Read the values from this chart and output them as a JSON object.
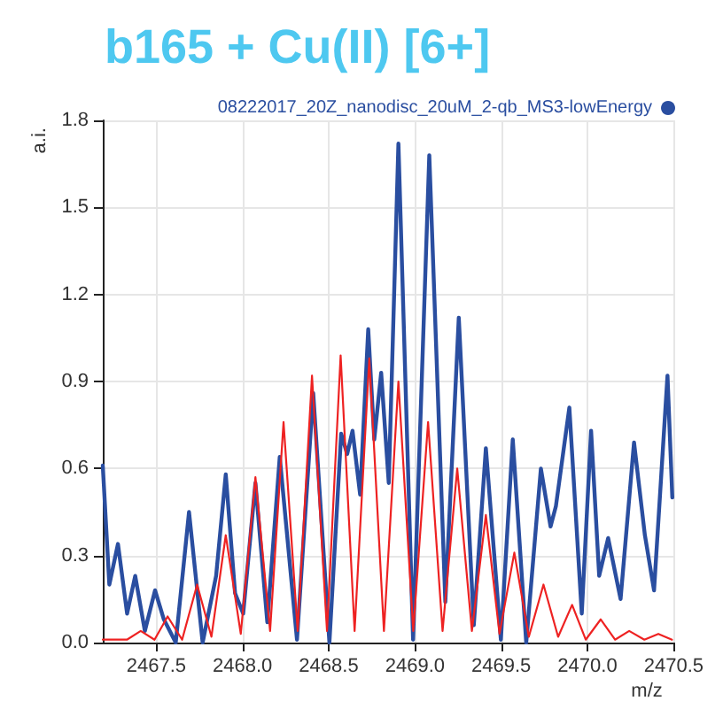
{
  "chart_data": {
    "type": "line",
    "title": "b165 + Cu(II) [6+]",
    "xlabel": "m/z",
    "ylabel": "a.i.",
    "xlim": [
      2467.19,
      2470.5
    ],
    "xticks": [
      2467.5,
      {
        "value": 2468,
        "label": "2468.0"
      },
      2468.5,
      {
        "value": 2469,
        "label": "2469.0"
      },
      2469.5,
      {
        "value": 2470,
        "label": "2470.0"
      },
      2470.5
    ],
    "ylim": [
      0,
      1.8
    ],
    "yticks": [
      {
        "value": 0,
        "label": "0.0"
      },
      {
        "value": 0.3,
        "label": "0.3"
      },
      {
        "value": 0.6,
        "label": "0.6"
      },
      {
        "value": 0.9,
        "label": "0.9"
      },
      {
        "value": 1.2,
        "label": "1.2"
      },
      {
        "value": 1.5,
        "label": "1.5"
      },
      {
        "value": 1.8,
        "label": "1.8"
      }
    ],
    "grid": true,
    "legend": "top right",
    "marker": "none",
    "line_style": "solid",
    "series": [
      {
        "name": "08222017_20Z_nanodisc_20uM_2-qb_MS3-lowEnergy",
        "color": "#2a4ea0",
        "x": [
          2467.19,
          2467.228,
          2467.278,
          2467.331,
          2467.378,
          2467.434,
          2467.493,
          2467.544,
          2467.613,
          2467.69,
          2467.769,
          2467.847,
          2467.903,
          2467.957,
          2468.004,
          2468.075,
          2468.144,
          2468.216,
          2468.316,
          2468.41,
          2468.504,
          2468.572,
          2468.607,
          2468.638,
          2468.682,
          2468.729,
          2468.764,
          2468.804,
          2468.848,
          2468.904,
          2468.989,
          2469.083,
          2469.176,
          2469.254,
          2469.341,
          2469.411,
          2469.498,
          2469.567,
          2469.645,
          2469.73,
          2469.786,
          2469.817,
          2469.895,
          2469.967,
          2470.021,
          2470.068,
          2470.12,
          2470.192,
          2470.27,
          2470.333,
          2470.386,
          2470.464,
          2470.492
        ],
        "values": [
          0.61,
          0.2,
          0.34,
          0.1,
          0.23,
          0.04,
          0.18,
          0.08,
          0,
          0.45,
          0,
          0.23,
          0.58,
          0.17,
          0.1,
          0.55,
          0.07,
          0.64,
          0.01,
          0.86,
          0,
          0.72,
          0.65,
          0.73,
          0.51,
          1.08,
          0.7,
          0.93,
          0.55,
          1.72,
          0.01,
          1.68,
          0.14,
          1.12,
          0.06,
          0.67,
          0.01,
          0.7,
          0,
          0.6,
          0.4,
          0.47,
          0.81,
          0.1,
          0.73,
          0.23,
          0.36,
          0.15,
          0.69,
          0.37,
          0.18,
          0.92,
          0.5
        ]
      },
      {
        "color": "#ee2222",
        "x": [
          2467.19,
          2467.33,
          2467.41,
          2467.49,
          2467.566,
          2467.65,
          2467.737,
          2467.82,
          2467.903,
          2467.99,
          2468.075,
          2468.16,
          2468.238,
          2468.32,
          2468.403,
          2468.49,
          2468.569,
          2468.65,
          2468.735,
          2468.82,
          2468.904,
          2468.99,
          2469.076,
          2469.16,
          2469.245,
          2469.33,
          2469.411,
          2469.49,
          2469.576,
          2469.66,
          2469.745,
          2469.83,
          2469.911,
          2469.99,
          2470.077,
          2470.16,
          2470.242,
          2470.33,
          2470.411,
          2470.49
        ],
        "values": [
          0.01,
          0.01,
          0.04,
          0.01,
          0.09,
          0.01,
          0.2,
          0.02,
          0.37,
          0.03,
          0.57,
          0.04,
          0.76,
          0.04,
          0.92,
          0.04,
          0.99,
          0.04,
          0.98,
          0.04,
          0.9,
          0.04,
          0.76,
          0.04,
          0.6,
          0.04,
          0.44,
          0.03,
          0.31,
          0.02,
          0.2,
          0.02,
          0.13,
          0.01,
          0.08,
          0.01,
          0.04,
          0.01,
          0.03,
          0.01
        ]
      }
    ]
  }
}
